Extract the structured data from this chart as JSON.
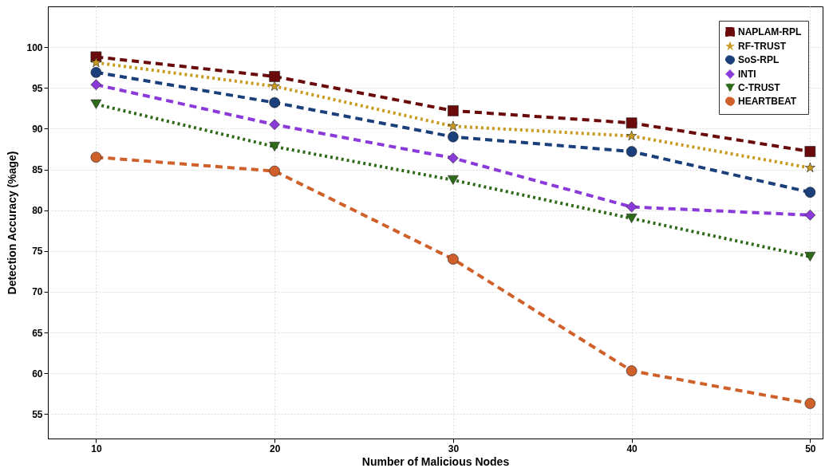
{
  "chart_data": {
    "type": "line",
    "xlabel": "Number of Malicious Nodes",
    "ylabel": "Detection Accuracy (%age)",
    "x": [
      10,
      20,
      30,
      40,
      50
    ],
    "xlim": [
      7.3,
      50.7
    ],
    "xticks": [
      10,
      20,
      30,
      40,
      50
    ],
    "ylim": [
      52,
      105
    ],
    "yticks": [
      55,
      60,
      65,
      70,
      75,
      80,
      85,
      90,
      95,
      100
    ],
    "grid": true,
    "legend": "top right",
    "series": [
      {
        "name": "NAPLAM-RPL",
        "color": "#6b0a0a",
        "marker": "square",
        "line_style": "dashed",
        "values": [
          98.8,
          96.4,
          92.2,
          90.7,
          87.2
        ]
      },
      {
        "name": "RF-TRUST",
        "color": "#c89a20",
        "marker": "star",
        "line_style": "dotted",
        "values": [
          98.1,
          95.2,
          90.3,
          89.1,
          85.2
        ]
      },
      {
        "name": "SoS-RPL",
        "color": "#1a3f7a",
        "marker": "circle",
        "line_style": "dashed",
        "values": [
          96.9,
          93.2,
          89.0,
          87.2,
          82.2
        ]
      },
      {
        "name": "INTI",
        "color": "#8a3ad8",
        "marker": "diamond",
        "line_style": "dashed",
        "values": [
          95.4,
          90.5,
          86.4,
          80.4,
          79.4
        ]
      },
      {
        "name": "C-TRUST",
        "color": "#2f6a1a",
        "marker": "triangle-down",
        "line_style": "dotted",
        "values": [
          93.0,
          87.8,
          83.7,
          79.0,
          74.3
        ]
      },
      {
        "name": "HEARTBEAT",
        "color": "#d0602a",
        "marker": "circle",
        "line_style": "dashed",
        "values": [
          86.5,
          84.8,
          74.0,
          60.3,
          56.3
        ]
      }
    ]
  }
}
